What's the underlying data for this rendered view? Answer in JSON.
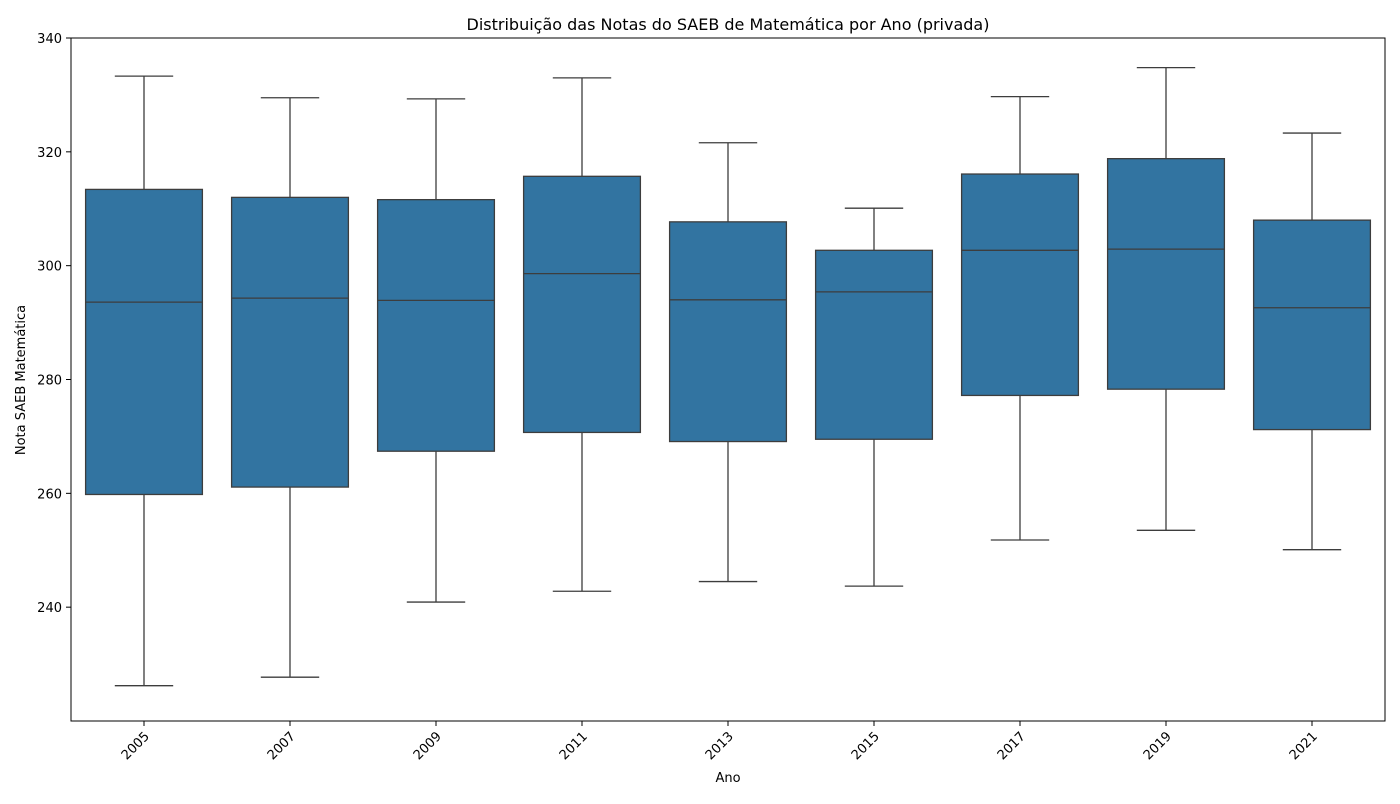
{
  "chart_data": {
    "type": "box",
    "title": "Distribuição das Notas do SAEB de Matemática por Ano (privada)",
    "xlabel": "Ano",
    "ylabel": "Nota SAEB Matemática",
    "ylim": [
      220,
      340
    ],
    "yticks": [
      240,
      260,
      280,
      300,
      320,
      340
    ],
    "grid": false,
    "legend": "none",
    "box_color": "#3274a1",
    "line_color": "#3d3d3d",
    "categories": [
      "2005",
      "2007",
      "2009",
      "2011",
      "2013",
      "2015",
      "2017",
      "2019",
      "2021"
    ],
    "boxes": [
      {
        "category": "2005",
        "whisker_low": 226.2,
        "q1": 259.8,
        "median": 293.6,
        "q3": 313.4,
        "whisker_high": 333.3
      },
      {
        "category": "2007",
        "whisker_low": 227.7,
        "q1": 261.1,
        "median": 294.3,
        "q3": 312.0,
        "whisker_high": 329.5
      },
      {
        "category": "2009",
        "whisker_low": 240.9,
        "q1": 267.4,
        "median": 293.9,
        "q3": 311.6,
        "whisker_high": 329.3
      },
      {
        "category": "2011",
        "whisker_low": 242.8,
        "q1": 270.7,
        "median": 298.6,
        "q3": 315.7,
        "whisker_high": 333.0
      },
      {
        "category": "2013",
        "whisker_low": 244.5,
        "q1": 269.1,
        "median": 294.0,
        "q3": 307.7,
        "whisker_high": 321.6
      },
      {
        "category": "2015",
        "whisker_low": 243.7,
        "q1": 269.5,
        "median": 295.4,
        "q3": 302.7,
        "whisker_high": 310.1
      },
      {
        "category": "2017",
        "whisker_low": 251.8,
        "q1": 277.2,
        "median": 302.7,
        "q3": 316.1,
        "whisker_high": 329.7
      },
      {
        "category": "2019",
        "whisker_low": 253.5,
        "q1": 278.3,
        "median": 302.9,
        "q3": 318.8,
        "whisker_high": 334.8
      },
      {
        "category": "2021",
        "whisker_low": 250.1,
        "q1": 271.2,
        "median": 292.6,
        "q3": 308.0,
        "whisker_high": 323.3
      }
    ]
  }
}
